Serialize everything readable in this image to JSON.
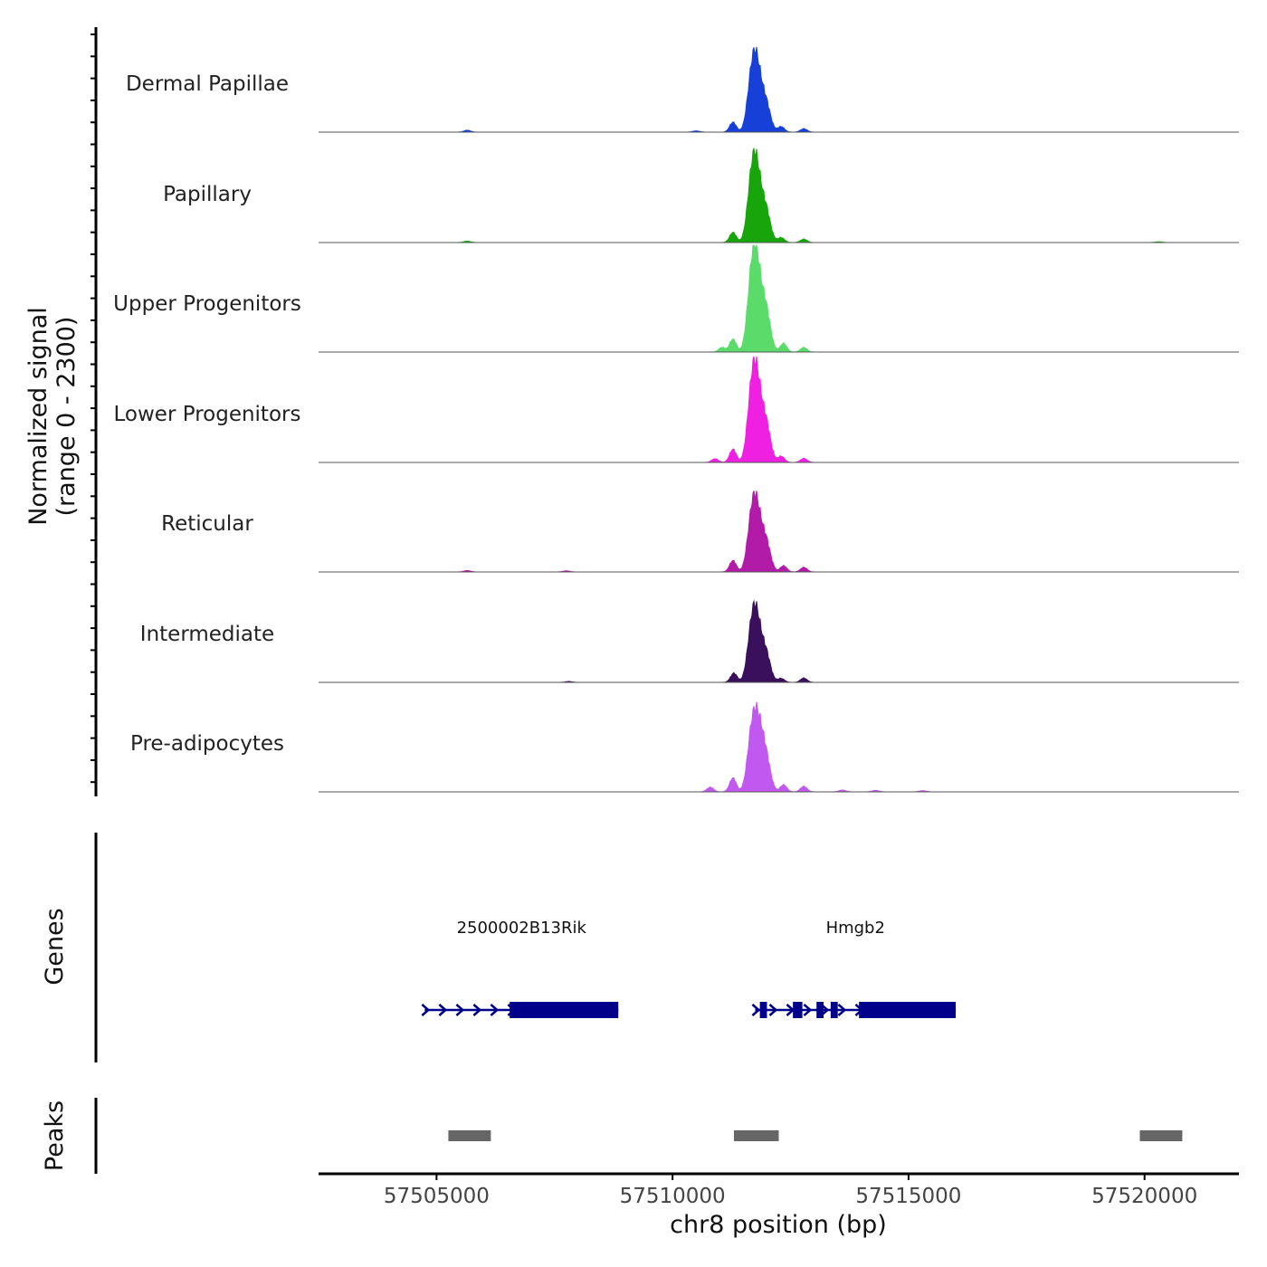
{
  "chart_data": {
    "type": "area",
    "title": "",
    "chromosome": "chr8",
    "xlabel": "chr8 position (bp)",
    "xlim": [
      57502500,
      57522000
    ],
    "xticks": [
      57505000,
      57510000,
      57515000,
      57520000
    ],
    "xtick_labels": [
      "57505000",
      "57510000",
      "57515000",
      "57520000"
    ],
    "ylabel_line1": "Normalized signal",
    "ylabel_line2": "(range 0 - 2300)",
    "ylim": [
      0,
      2300
    ],
    "tracks": [
      {
        "name": "Dermal Papillae",
        "color": "#1640d8",
        "peaks": [
          [
            57505650,
            60
          ],
          [
            57511280,
            320
          ],
          [
            57511680,
            1650
          ],
          [
            57511800,
            1600
          ],
          [
            57511980,
            900
          ],
          [
            57512300,
            180
          ],
          [
            57512780,
            110
          ],
          [
            57510500,
            40
          ]
        ]
      },
      {
        "name": "Papillary",
        "color": "#17a50b",
        "peaks": [
          [
            57505650,
            45
          ],
          [
            57511280,
            330
          ],
          [
            57511680,
            1900
          ],
          [
            57511800,
            1700
          ],
          [
            57511980,
            1000
          ],
          [
            57512300,
            160
          ],
          [
            57512780,
            110
          ],
          [
            57520300,
            25
          ]
        ]
      },
      {
        "name": "Upper Progenitors",
        "color": "#5bdc6a",
        "peaks": [
          [
            57511050,
            150
          ],
          [
            57511280,
            420
          ],
          [
            57511680,
            2250
          ],
          [
            57511800,
            2050
          ],
          [
            57511980,
            1300
          ],
          [
            57512350,
            280
          ],
          [
            57512780,
            150
          ]
        ]
      },
      {
        "name": "Lower Progenitors",
        "color": "#f020e2",
        "peaks": [
          [
            57510900,
            120
          ],
          [
            57511280,
            430
          ],
          [
            57511680,
            2100
          ],
          [
            57511800,
            1950
          ],
          [
            57511980,
            1200
          ],
          [
            57512300,
            200
          ],
          [
            57512780,
            130
          ]
        ]
      },
      {
        "name": "Reticular",
        "color": "#b21aa8",
        "peaks": [
          [
            57505650,
            45
          ],
          [
            57507750,
            35
          ],
          [
            57511280,
            370
          ],
          [
            57511680,
            1600
          ],
          [
            57511800,
            1500
          ],
          [
            57511980,
            950
          ],
          [
            57512350,
            200
          ],
          [
            57512780,
            150
          ]
        ]
      },
      {
        "name": "Intermediate",
        "color": "#3a0f5c",
        "peaks": [
          [
            57511300,
            300
          ],
          [
            57511680,
            1600
          ],
          [
            57511800,
            1500
          ],
          [
            57511980,
            900
          ],
          [
            57512300,
            130
          ],
          [
            57512780,
            140
          ],
          [
            57507800,
            30
          ]
        ]
      },
      {
        "name": "Pre-adipocytes",
        "color": "#c158f0",
        "peaks": [
          [
            57510800,
            150
          ],
          [
            57511280,
            450
          ],
          [
            57511680,
            1800
          ],
          [
            57511820,
            1750
          ],
          [
            57511980,
            1050
          ],
          [
            57512350,
            230
          ],
          [
            57512780,
            180
          ],
          [
            57513600,
            60
          ],
          [
            57514300,
            50
          ],
          [
            57515300,
            40
          ]
        ]
      }
    ],
    "genes": [
      {
        "name": "2500002B13Rik",
        "start": 57504750,
        "end": 57508850,
        "strand": "+",
        "exons": [
          [
            57506550,
            57508850
          ]
        ]
      },
      {
        "name": "Hmgb2",
        "start": 57511750,
        "end": 57516000,
        "strand": "+",
        "exons": [
          [
            57511850,
            57512000
          ],
          [
            57512550,
            57512750
          ],
          [
            57513050,
            57513200
          ],
          [
            57513350,
            57513500
          ],
          [
            57513950,
            57516000
          ]
        ]
      }
    ],
    "peaks": [
      [
        57505250,
        57506150
      ],
      [
        57511300,
        57512250
      ],
      [
        57519900,
        57520800
      ]
    ],
    "gene_color": "#00008b",
    "peak_color": "#666666",
    "panel_labels": {
      "genes": "Genes",
      "peaks": "Peaks"
    }
  }
}
